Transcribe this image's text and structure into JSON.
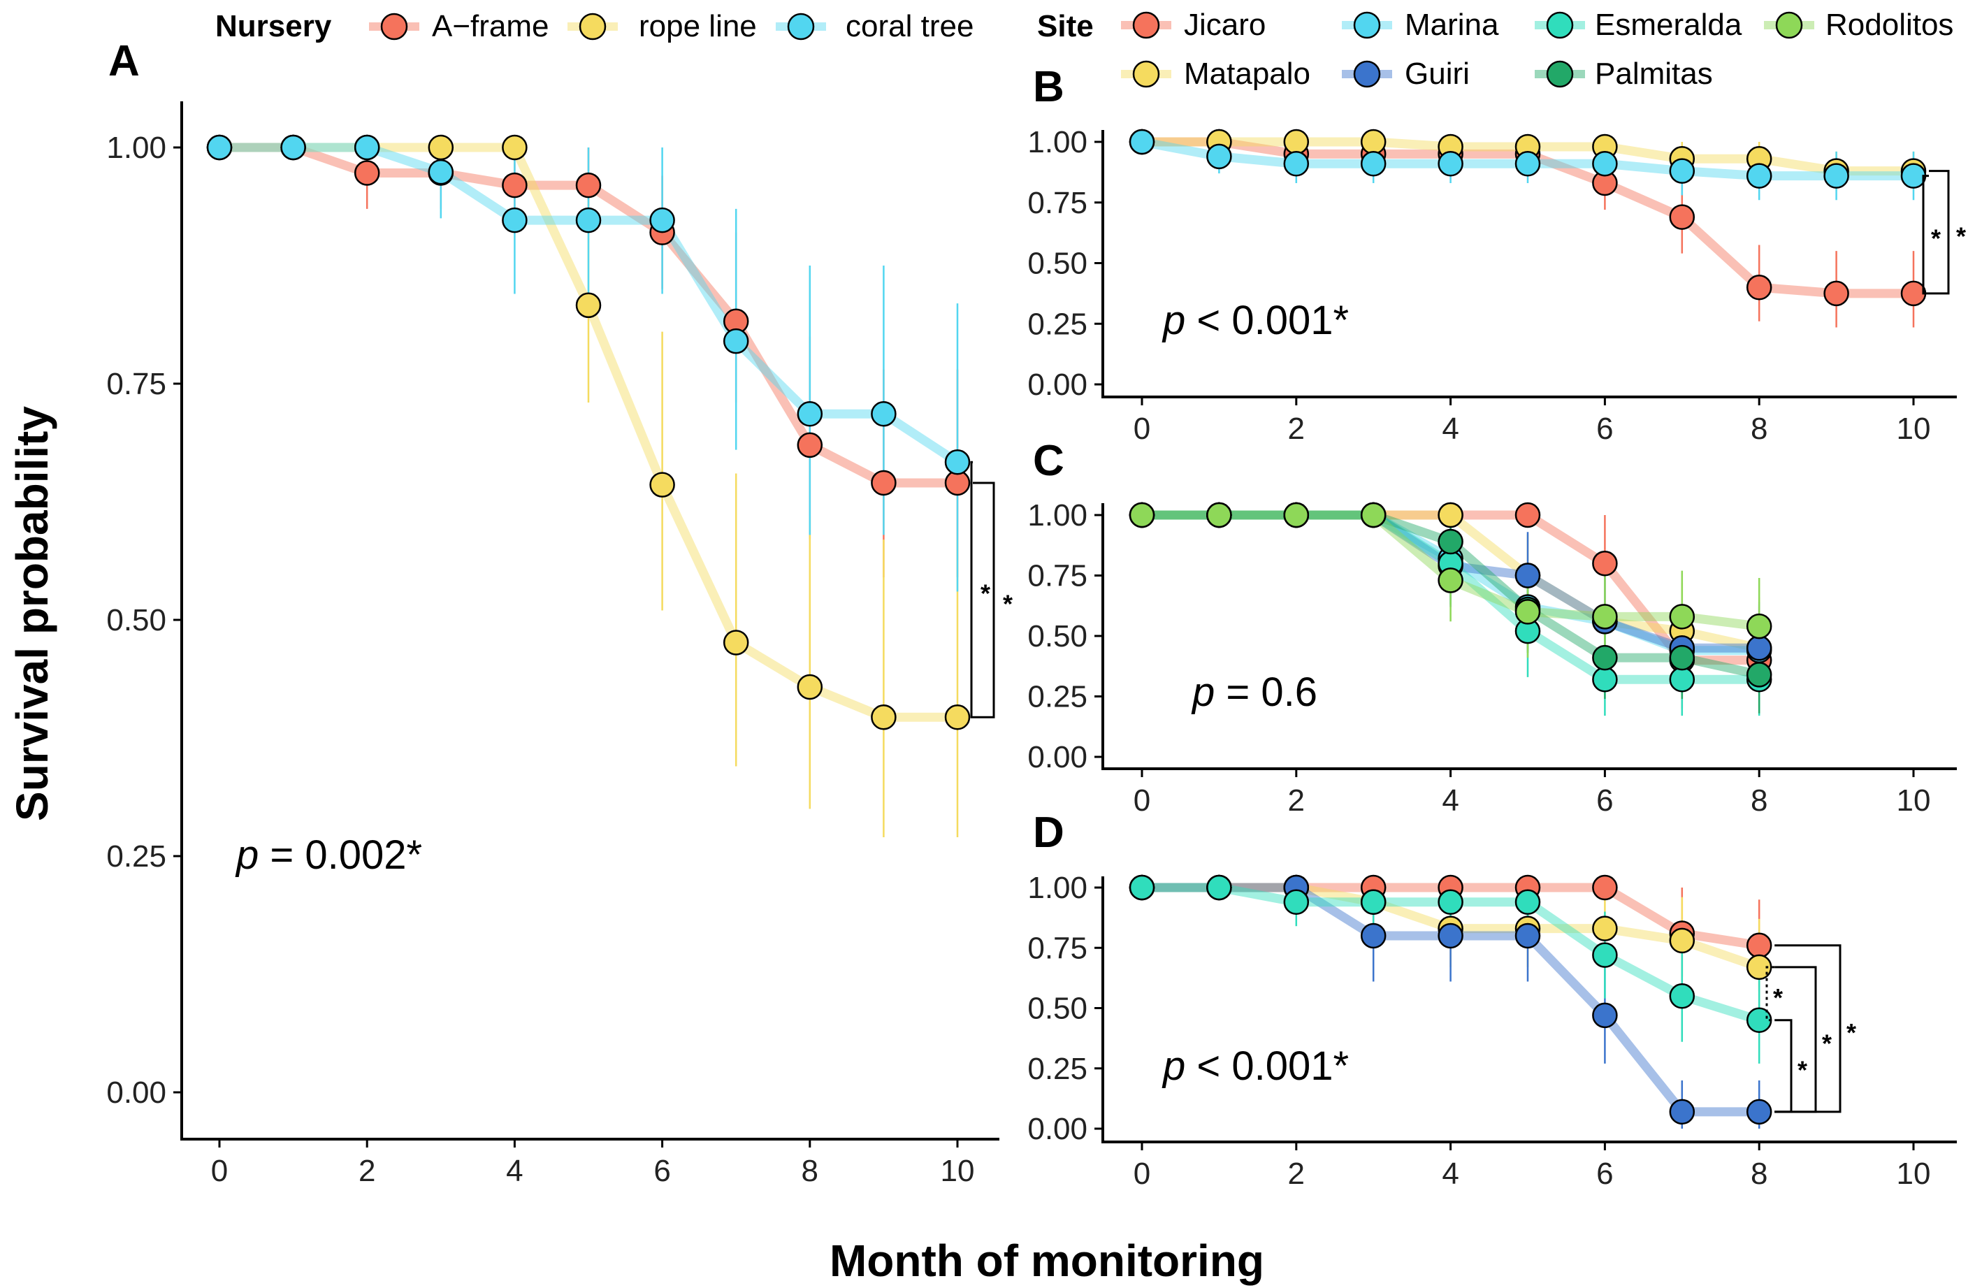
{
  "legends": {
    "nursery": {
      "title": "Nursery",
      "items": [
        {
          "label": "A−frame",
          "color": "#F5735C"
        },
        {
          "label": "rope line",
          "color": "#F5DB5F"
        },
        {
          "label": "coral tree",
          "color": "#52D6F0"
        }
      ]
    },
    "site": {
      "title": "Site",
      "items": [
        {
          "label": "Jicaro",
          "color": "#F5735C"
        },
        {
          "label": "Matapalo",
          "color": "#F5DB5F"
        },
        {
          "label": "Marina",
          "color": "#52D6F0"
        },
        {
          "label": "Guiri",
          "color": "#3B74CC"
        },
        {
          "label": "Esmeralda",
          "color": "#30DDBC"
        },
        {
          "label": "Palmitas",
          "color": "#22A868"
        },
        {
          "label": "Rodolitos",
          "color": "#8ED858"
        }
      ]
    }
  },
  "axes": {
    "ylabel": "Survival probability",
    "xlabel": "Month of monitoring"
  },
  "chart_data": [
    {
      "panel": "A",
      "type": "line",
      "xlim": [
        0,
        10
      ],
      "ylim": [
        0,
        1
      ],
      "xticks": [
        "0",
        "2",
        "4",
        "6",
        "8",
        "10"
      ],
      "yticks": [
        "0.00",
        "0.25",
        "0.50",
        "0.75",
        "1.00"
      ],
      "p_label": "p",
      "p_text": " = 0.002*",
      "series": [
        {
          "name": "A−frame",
          "color": "#F5735C",
          "x": [
            0,
            1,
            2,
            3,
            4,
            5,
            6,
            7,
            8,
            9,
            10
          ],
          "y": [
            1.0,
            1.0,
            0.973,
            0.973,
            0.96,
            0.96,
            0.91,
            0.816,
            0.685,
            0.645,
            0.645
          ],
          "lo": [
            1.0,
            1.0,
            0.935,
            0.935,
            0.915,
            0.915,
            0.85,
            0.73,
            0.585,
            0.545,
            0.545
          ],
          "hi": [
            1.0,
            1.0,
            1.0,
            1.0,
            1.0,
            1.0,
            0.97,
            0.91,
            0.8,
            0.765,
            0.765
          ]
        },
        {
          "name": "rope line",
          "color": "#F5DB5F",
          "x": [
            0,
            1,
            2,
            3,
            4,
            5,
            6,
            7,
            8,
            9,
            10
          ],
          "y": [
            1.0,
            1.0,
            1.0,
            1.0,
            1.0,
            0.833,
            0.643,
            0.476,
            0.429,
            0.397,
            0.397
          ],
          "lo": [
            1.0,
            1.0,
            1.0,
            1.0,
            1.0,
            0.73,
            0.51,
            0.345,
            0.3,
            0.27,
            0.27
          ],
          "hi": [
            1.0,
            1.0,
            1.0,
            1.0,
            1.0,
            0.955,
            0.805,
            0.655,
            0.61,
            0.585,
            0.585
          ]
        },
        {
          "name": "coral tree",
          "color": "#52D6F0",
          "x": [
            0,
            1,
            2,
            3,
            4,
            5,
            6,
            7,
            8,
            9,
            10
          ],
          "y": [
            1.0,
            1.0,
            1.0,
            0.974,
            0.923,
            0.923,
            0.923,
            0.795,
            0.718,
            0.718,
            0.667
          ],
          "lo": [
            1.0,
            1.0,
            1.0,
            0.925,
            0.845,
            0.845,
            0.845,
            0.68,
            0.59,
            0.59,
            0.53
          ],
          "hi": [
            1.0,
            1.0,
            1.0,
            1.0,
            1.0,
            1.0,
            1.0,
            0.935,
            0.875,
            0.875,
            0.835
          ]
        }
      ],
      "brackets": [
        {
          "from": "coral tree",
          "to": "rope line",
          "label": "*",
          "style": "solid"
        },
        {
          "from": "A−frame",
          "to": "rope line",
          "label": "*",
          "style": "solid"
        }
      ]
    },
    {
      "panel": "B",
      "type": "line",
      "xlim": [
        0,
        10
      ],
      "ylim": [
        0,
        1
      ],
      "xticks": [
        "0",
        "2",
        "4",
        "6",
        "8",
        "10"
      ],
      "yticks": [
        "0.00",
        "0.25",
        "0.50",
        "0.75",
        "1.00"
      ],
      "p_label": "p",
      "p_text": " < 0.001*",
      "series": [
        {
          "name": "Jicaro",
          "color": "#F5735C",
          "x": [
            0,
            1,
            2,
            3,
            4,
            5,
            6,
            7,
            8,
            9,
            10
          ],
          "y": [
            1.0,
            1.0,
            0.95,
            0.95,
            0.95,
            0.95,
            0.83,
            0.69,
            0.4,
            0.375,
            0.375
          ],
          "lo": [
            1.0,
            1.0,
            0.88,
            0.88,
            0.88,
            0.88,
            0.72,
            0.54,
            0.26,
            0.235,
            0.235
          ],
          "hi": [
            1.0,
            1.0,
            1.0,
            1.0,
            1.0,
            1.0,
            0.96,
            0.85,
            0.575,
            0.55,
            0.55
          ]
        },
        {
          "name": "Matapalo",
          "color": "#F5DB5F",
          "x": [
            0,
            1,
            2,
            3,
            4,
            5,
            6,
            7,
            8,
            9,
            10
          ],
          "y": [
            1.0,
            1.0,
            1.0,
            1.0,
            0.98,
            0.98,
            0.98,
            0.93,
            0.93,
            0.88,
            0.88
          ],
          "lo": [
            1.0,
            1.0,
            1.0,
            1.0,
            0.94,
            0.94,
            0.94,
            0.86,
            0.86,
            0.8,
            0.8
          ],
          "hi": [
            1.0,
            1.0,
            1.0,
            1.0,
            1.0,
            1.0,
            1.0,
            1.0,
            1.0,
            0.96,
            0.96
          ]
        },
        {
          "name": "Marina",
          "color": "#52D6F0",
          "x": [
            0,
            1,
            2,
            3,
            4,
            5,
            6,
            7,
            8,
            9,
            10
          ],
          "y": [
            1.0,
            0.94,
            0.91,
            0.91,
            0.91,
            0.91,
            0.91,
            0.88,
            0.86,
            0.86,
            0.86
          ],
          "lo": [
            1.0,
            0.87,
            0.83,
            0.83,
            0.83,
            0.83,
            0.83,
            0.78,
            0.76,
            0.76,
            0.76
          ],
          "hi": [
            1.0,
            1.0,
            0.99,
            0.99,
            0.99,
            0.99,
            0.99,
            0.97,
            0.96,
            0.96,
            0.96
          ]
        }
      ],
      "brackets": [
        {
          "from": "Marina",
          "to": "Jicaro",
          "label": "*",
          "style": "solid"
        },
        {
          "from": "Matapalo",
          "to": "Jicaro",
          "label": "*",
          "style": "solid"
        }
      ]
    },
    {
      "panel": "C",
      "type": "line",
      "xlim": [
        0,
        10
      ],
      "ylim": [
        0,
        1
      ],
      "xticks": [
        "0",
        "2",
        "4",
        "6",
        "8",
        "10"
      ],
      "yticks": [
        "0.00",
        "0.25",
        "0.50",
        "0.75",
        "1.00"
      ],
      "p_label": "p",
      "p_text": " = 0.6",
      "series": [
        {
          "name": "Jicaro",
          "color": "#F5735C",
          "x": [
            0,
            1,
            2,
            3,
            4,
            5,
            6,
            7,
            8
          ],
          "y": [
            1.0,
            1.0,
            1.0,
            1.0,
            1.0,
            1.0,
            0.8,
            0.4,
            0.4
          ],
          "lo": [
            1.0,
            1.0,
            1.0,
            1.0,
            1.0,
            1.0,
            0.58,
            0.2,
            0.2
          ],
          "hi": [
            1.0,
            1.0,
            1.0,
            1.0,
            1.0,
            1.0,
            1.0,
            0.62,
            0.62
          ]
        },
        {
          "name": "Matapalo",
          "color": "#F5DB5F",
          "x": [
            0,
            1,
            2,
            3,
            4,
            5,
            6,
            7,
            8
          ],
          "y": [
            1.0,
            1.0,
            1.0,
            1.0,
            1.0,
            0.75,
            0.56,
            0.52,
            0.45
          ],
          "lo": [
            1.0,
            1.0,
            1.0,
            1.0,
            1.0,
            0.58,
            0.38,
            0.33,
            0.26
          ],
          "hi": [
            1.0,
            1.0,
            1.0,
            1.0,
            1.0,
            0.92,
            0.75,
            0.72,
            0.66
          ]
        },
        {
          "name": "Marina",
          "color": "#52D6F0",
          "x": [
            0,
            1,
            2,
            3,
            4,
            5,
            6,
            7,
            8
          ],
          "y": [
            1.0,
            1.0,
            1.0,
            1.0,
            0.82,
            0.62,
            0.56,
            0.44,
            0.44
          ],
          "lo": [
            1.0,
            1.0,
            1.0,
            1.0,
            0.66,
            0.44,
            0.38,
            0.26,
            0.26
          ],
          "hi": [
            1.0,
            1.0,
            1.0,
            1.0,
            0.98,
            0.8,
            0.74,
            0.63,
            0.63
          ]
        },
        {
          "name": "Guiri",
          "color": "#3B74CC",
          "x": [
            0,
            1,
            2,
            3,
            4,
            5,
            6,
            7,
            8
          ],
          "y": [
            1.0,
            1.0,
            1.0,
            1.0,
            0.79,
            0.75,
            0.56,
            0.45,
            0.45
          ],
          "lo": [
            1.0,
            1.0,
            1.0,
            1.0,
            0.62,
            0.57,
            0.37,
            0.27,
            0.27
          ],
          "hi": [
            1.0,
            1.0,
            1.0,
            1.0,
            0.96,
            0.93,
            0.75,
            0.64,
            0.64
          ]
        },
        {
          "name": "Esmeralda",
          "color": "#30DDBC",
          "x": [
            0,
            1,
            2,
            3,
            4,
            5,
            6,
            7,
            8
          ],
          "y": [
            1.0,
            1.0,
            1.0,
            1.0,
            0.8,
            0.52,
            0.32,
            0.32,
            0.32
          ],
          "lo": [
            1.0,
            1.0,
            1.0,
            1.0,
            0.63,
            0.33,
            0.17,
            0.17,
            0.17
          ],
          "hi": [
            1.0,
            1.0,
            1.0,
            1.0,
            0.97,
            0.71,
            0.5,
            0.5,
            0.5
          ]
        },
        {
          "name": "Palmitas",
          "color": "#22A868",
          "x": [
            0,
            1,
            2,
            3,
            4,
            5,
            6,
            7,
            8
          ],
          "y": [
            1.0,
            1.0,
            1.0,
            1.0,
            0.89,
            0.61,
            0.41,
            0.41,
            0.34
          ],
          "lo": [
            1.0,
            1.0,
            1.0,
            1.0,
            0.75,
            0.43,
            0.24,
            0.24,
            0.18
          ],
          "hi": [
            1.0,
            1.0,
            1.0,
            1.0,
            1.0,
            0.79,
            0.6,
            0.6,
            0.52
          ]
        },
        {
          "name": "Rodolitos",
          "color": "#8ED858",
          "x": [
            0,
            1,
            2,
            3,
            4,
            5,
            6,
            7,
            8
          ],
          "y": [
            1.0,
            1.0,
            1.0,
            1.0,
            0.73,
            0.6,
            0.58,
            0.58,
            0.54
          ],
          "lo": [
            1.0,
            1.0,
            1.0,
            1.0,
            0.56,
            0.41,
            0.39,
            0.39,
            0.35
          ],
          "hi": [
            1.0,
            1.0,
            1.0,
            1.0,
            0.9,
            0.78,
            0.77,
            0.77,
            0.74
          ]
        }
      ],
      "brackets": []
    },
    {
      "panel": "D",
      "type": "line",
      "xlim": [
        0,
        10
      ],
      "ylim": [
        0,
        1
      ],
      "xticks": [
        "0",
        "2",
        "4",
        "6",
        "8",
        "10"
      ],
      "yticks": [
        "0.00",
        "0.25",
        "0.50",
        "0.75",
        "1.00"
      ],
      "p_label": "p",
      "p_text": " < 0.001*",
      "series": [
        {
          "name": "Jicaro",
          "color": "#F5735C",
          "x": [
            0,
            1,
            2,
            3,
            4,
            5,
            6,
            7,
            8
          ],
          "y": [
            1.0,
            1.0,
            1.0,
            1.0,
            1.0,
            1.0,
            1.0,
            0.81,
            0.76
          ],
          "lo": [
            1.0,
            1.0,
            1.0,
            1.0,
            1.0,
            1.0,
            1.0,
            0.63,
            0.57
          ],
          "hi": [
            1.0,
            1.0,
            1.0,
            1.0,
            1.0,
            1.0,
            1.0,
            1.0,
            0.95
          ]
        },
        {
          "name": "Matapalo",
          "color": "#F5DB5F",
          "x": [
            0,
            1,
            2,
            3,
            4,
            5,
            6,
            7,
            8
          ],
          "y": [
            1.0,
            1.0,
            1.0,
            0.94,
            0.83,
            0.83,
            0.83,
            0.78,
            0.67
          ],
          "lo": [
            1.0,
            1.0,
            1.0,
            0.84,
            0.67,
            0.67,
            0.67,
            0.6,
            0.47
          ],
          "hi": [
            1.0,
            1.0,
            1.0,
            1.0,
            0.99,
            0.99,
            0.99,
            0.96,
            0.87
          ]
        },
        {
          "name": "Guiri",
          "color": "#3B74CC",
          "x": [
            0,
            1,
            2,
            3,
            4,
            5,
            6,
            7,
            8
          ],
          "y": [
            1.0,
            1.0,
            1.0,
            0.8,
            0.8,
            0.8,
            0.47,
            0.07,
            0.07
          ],
          "lo": [
            1.0,
            1.0,
            1.0,
            0.61,
            0.61,
            0.61,
            0.27,
            0.0,
            0.0
          ],
          "hi": [
            1.0,
            1.0,
            1.0,
            0.99,
            0.99,
            0.99,
            0.67,
            0.2,
            0.2
          ]
        },
        {
          "name": "Esmeralda",
          "color": "#30DDBC",
          "x": [
            0,
            1,
            2,
            3,
            4,
            5,
            6,
            7,
            8
          ],
          "y": [
            1.0,
            1.0,
            0.94,
            0.94,
            0.94,
            0.94,
            0.72,
            0.55,
            0.45
          ],
          "lo": [
            1.0,
            1.0,
            0.84,
            0.84,
            0.84,
            0.84,
            0.54,
            0.36,
            0.27
          ],
          "hi": [
            1.0,
            1.0,
            1.0,
            1.0,
            1.0,
            1.0,
            0.9,
            0.74,
            0.63
          ]
        }
      ],
      "brackets": [
        {
          "from": "Matapalo",
          "to": "Esmeralda",
          "label": "*",
          "style": "dotted"
        },
        {
          "from": "Esmeralda",
          "to": "Guiri",
          "label": "*",
          "style": "solid"
        },
        {
          "from": "Matapalo",
          "to": "Guiri",
          "label": "*",
          "style": "solid"
        },
        {
          "from": "Jicaro",
          "to": "Guiri",
          "label": "*",
          "style": "solid"
        }
      ]
    }
  ]
}
